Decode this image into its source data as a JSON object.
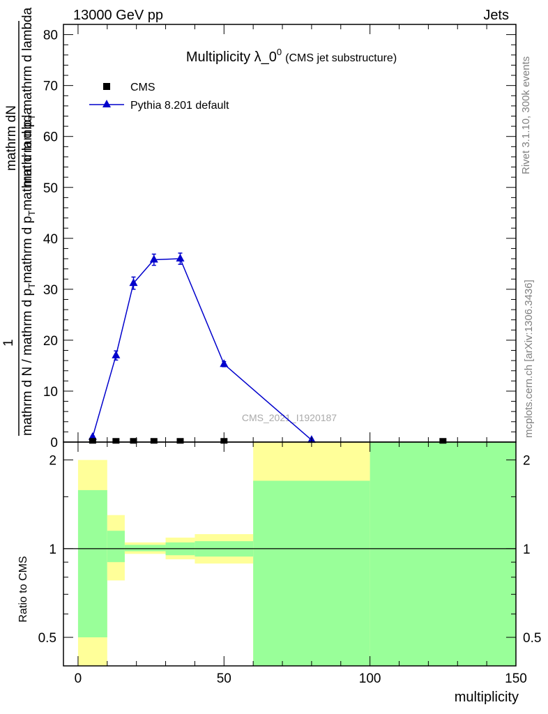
{
  "header": {
    "left": "13000 GeV pp",
    "right": "Jets"
  },
  "side_labels": {
    "rivet": "Rivet 3.1.10,  300k events",
    "mcplots": "mcplots.cern.ch [arXiv:1306.3436]"
  },
  "watermark": "CMS_2021_I1920187",
  "colors": {
    "pythia": "#0000cc",
    "band_outer": "#ffff99",
    "band_inner": "#99ff99",
    "cms": "#000000"
  },
  "chart_data": [
    {
      "type": "line",
      "title": "Multiplicity λ_0",
      "title_sup": "0",
      "title_note": "(CMS jet substructure)",
      "ylabel_num": "mathrm dN",
      "ylabel_one": "1",
      "ylabel_den": "mathrm d N / mathrm d p_T mathrm d p_T mathrm d lambda",
      "xlim": [
        -5,
        150
      ],
      "ylim": [
        0,
        82
      ],
      "yticks": [
        0,
        10,
        20,
        30,
        40,
        50,
        60,
        70,
        80
      ],
      "legend_position": "top-left",
      "series": [
        {
          "name": "CMS",
          "marker": "square",
          "x": [
            5,
            13,
            19,
            26,
            35,
            50,
            125
          ],
          "y": [
            0.1,
            0.1,
            0.1,
            0.1,
            0.1,
            0.1,
            0.1
          ]
        },
        {
          "name": "Pythia 8.201 default",
          "marker": "triangle",
          "x": [
            5,
            13,
            19,
            26,
            35,
            50,
            80
          ],
          "y": [
            1.0,
            17.0,
            31.2,
            35.8,
            36.0,
            15.3,
            0.4
          ],
          "err": [
            0.2,
            0.9,
            1.2,
            1.1,
            1.1,
            0.5,
            0.1
          ]
        }
      ]
    },
    {
      "type": "area",
      "ylabel": "Ratio to CMS",
      "xlabel": "multiplicity",
      "xlim": [
        -5,
        150
      ],
      "ylim": [
        0.4,
        2.3
      ],
      "log_scale_y": true,
      "xticks": [
        0,
        50,
        100,
        150
      ],
      "yticks": [
        0.5,
        1,
        2
      ],
      "reference_line": 1,
      "bins": [
        {
          "x0": 0,
          "x1": 10,
          "outer": [
            0.4,
            2.0
          ],
          "inner": [
            0.5,
            1.58
          ]
        },
        {
          "x0": 10,
          "x1": 16,
          "outer": [
            0.78,
            1.3
          ],
          "inner": [
            0.9,
            1.15
          ]
        },
        {
          "x0": 16,
          "x1": 30,
          "outer": [
            0.96,
            1.05
          ],
          "inner": [
            0.98,
            1.03
          ]
        },
        {
          "x0": 30,
          "x1": 40,
          "outer": [
            0.92,
            1.09
          ],
          "inner": [
            0.95,
            1.05
          ]
        },
        {
          "x0": 40,
          "x1": 60,
          "outer": [
            0.89,
            1.12
          ],
          "inner": [
            0.94,
            1.06
          ]
        },
        {
          "x0": 60,
          "x1": 100,
          "outer": [
            0.4,
            2.3
          ],
          "inner": [
            0.4,
            1.7
          ]
        },
        {
          "x0": 100,
          "x1": 150,
          "outer": [
            0.4,
            2.3
          ],
          "inner": [
            0.4,
            2.3
          ]
        }
      ]
    }
  ]
}
